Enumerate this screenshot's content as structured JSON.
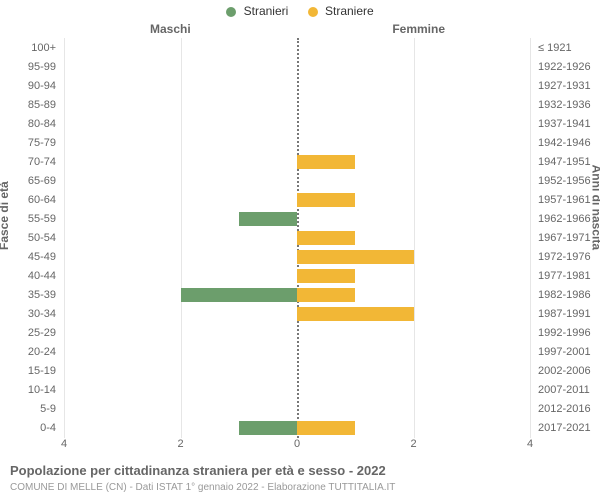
{
  "chart": {
    "type": "pyramid-bar",
    "legend": [
      {
        "label": "Stranieri",
        "color": "#6c9e6c"
      },
      {
        "label": "Straniere",
        "color": "#f2b736"
      }
    ],
    "col_titles": {
      "left": "Maschi",
      "right": "Femmine"
    },
    "axis_left_title": "Fasce di età",
    "axis_right_title": "Anni di nascita",
    "y_left_labels": [
      "100+",
      "95-99",
      "90-94",
      "85-89",
      "80-84",
      "75-79",
      "70-74",
      "65-69",
      "60-64",
      "55-59",
      "50-54",
      "45-49",
      "40-44",
      "35-39",
      "30-34",
      "25-29",
      "20-24",
      "15-19",
      "10-14",
      "5-9",
      "0-4"
    ],
    "y_right_labels": [
      "≤ 1921",
      "1922-1926",
      "1927-1931",
      "1932-1936",
      "1937-1941",
      "1942-1946",
      "1947-1951",
      "1952-1956",
      "1957-1961",
      "1962-1966",
      "1967-1971",
      "1972-1976",
      "1977-1981",
      "1982-1986",
      "1987-1991",
      "1992-1996",
      "1997-2001",
      "2002-2006",
      "2007-2011",
      "2012-2016",
      "2017-2021"
    ],
    "x_ticks": [
      4,
      2,
      0,
      2,
      4
    ],
    "x_max": 4,
    "male_color": "#6c9e6c",
    "female_color": "#f2b736",
    "male_values": [
      0,
      0,
      0,
      0,
      0,
      0,
      0,
      0,
      0,
      1,
      0,
      0,
      0,
      2,
      0,
      0,
      0,
      0,
      0,
      0,
      1
    ],
    "female_values": [
      0,
      0,
      0,
      0,
      0,
      0,
      1,
      0,
      1,
      0,
      1,
      2,
      1,
      1,
      2,
      0,
      0,
      0,
      0,
      0,
      1
    ],
    "grid_color": "#e6e6e6",
    "background": "#ffffff",
    "title_fontsize": 13,
    "label_fontsize": 11
  },
  "footer": {
    "title": "Popolazione per cittadinanza straniera per età e sesso - 2022",
    "subtitle": "COMUNE DI MELLE (CN) - Dati ISTAT 1° gennaio 2022 - Elaborazione TUTTITALIA.IT"
  }
}
